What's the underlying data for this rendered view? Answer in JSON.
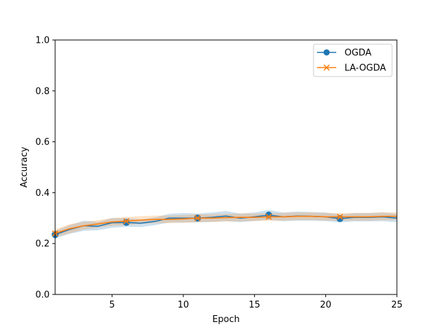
{
  "chart_data": {
    "type": "line",
    "xlabel": "Epoch",
    "ylabel": "Accuracy",
    "xlim": [
      1,
      25
    ],
    "ylim": [
      0.0,
      1.0
    ],
    "xticks": [
      5,
      10,
      15,
      20,
      25
    ],
    "yticks": [
      0.0,
      0.2,
      0.4,
      0.6,
      0.8,
      1.0
    ],
    "xtick_labels": [
      "5",
      "10",
      "15",
      "20",
      "25"
    ],
    "ytick_labels": [
      "0.0",
      "0.2",
      "0.4",
      "0.6",
      "0.8",
      "1.0"
    ],
    "grid": false,
    "legend_position": "top-right",
    "x": [
      1,
      2,
      3,
      4,
      5,
      6,
      7,
      8,
      9,
      10,
      11,
      12,
      13,
      14,
      15,
      16,
      17,
      18,
      19,
      20,
      21,
      22,
      23,
      24,
      25
    ],
    "series": [
      {
        "name": "OGDA",
        "color": "#1f77b4",
        "marker": "circle",
        "marker_every": [
          1,
          6,
          11,
          16,
          21
        ],
        "values": [
          0.235,
          0.255,
          0.27,
          0.268,
          0.282,
          0.283,
          0.28,
          0.287,
          0.3,
          0.3,
          0.3,
          0.303,
          0.308,
          0.3,
          0.305,
          0.312,
          0.305,
          0.308,
          0.307,
          0.305,
          0.298,
          0.303,
          0.303,
          0.305,
          0.3
        ],
        "band_lower": [
          0.22,
          0.238,
          0.25,
          0.252,
          0.262,
          0.266,
          0.265,
          0.272,
          0.283,
          0.283,
          0.283,
          0.285,
          0.288,
          0.284,
          0.289,
          0.293,
          0.288,
          0.29,
          0.29,
          0.288,
          0.283,
          0.287,
          0.287,
          0.288,
          0.284
        ],
        "band_upper": [
          0.25,
          0.272,
          0.29,
          0.285,
          0.3,
          0.3,
          0.295,
          0.302,
          0.317,
          0.32,
          0.318,
          0.322,
          0.328,
          0.318,
          0.322,
          0.332,
          0.322,
          0.326,
          0.324,
          0.322,
          0.314,
          0.32,
          0.32,
          0.322,
          0.317
        ]
      },
      {
        "name": "LA-OGDA",
        "color": "#ff7f0e",
        "marker": "x",
        "marker_every": [
          1,
          6,
          11,
          16,
          21
        ],
        "values": [
          0.24,
          0.258,
          0.27,
          0.277,
          0.285,
          0.288,
          0.292,
          0.295,
          0.295,
          0.297,
          0.3,
          0.3,
          0.302,
          0.303,
          0.303,
          0.305,
          0.305,
          0.307,
          0.307,
          0.305,
          0.305,
          0.305,
          0.305,
          0.307,
          0.307
        ],
        "band_lower": [
          0.225,
          0.24,
          0.255,
          0.262,
          0.27,
          0.272,
          0.277,
          0.28,
          0.28,
          0.282,
          0.285,
          0.285,
          0.287,
          0.288,
          0.288,
          0.29,
          0.29,
          0.292,
          0.292,
          0.29,
          0.29,
          0.29,
          0.29,
          0.292,
          0.292
        ],
        "band_upper": [
          0.255,
          0.276,
          0.285,
          0.292,
          0.3,
          0.304,
          0.308,
          0.31,
          0.31,
          0.312,
          0.315,
          0.315,
          0.317,
          0.318,
          0.318,
          0.32,
          0.32,
          0.322,
          0.322,
          0.32,
          0.32,
          0.32,
          0.32,
          0.323,
          0.323
        ]
      }
    ]
  }
}
